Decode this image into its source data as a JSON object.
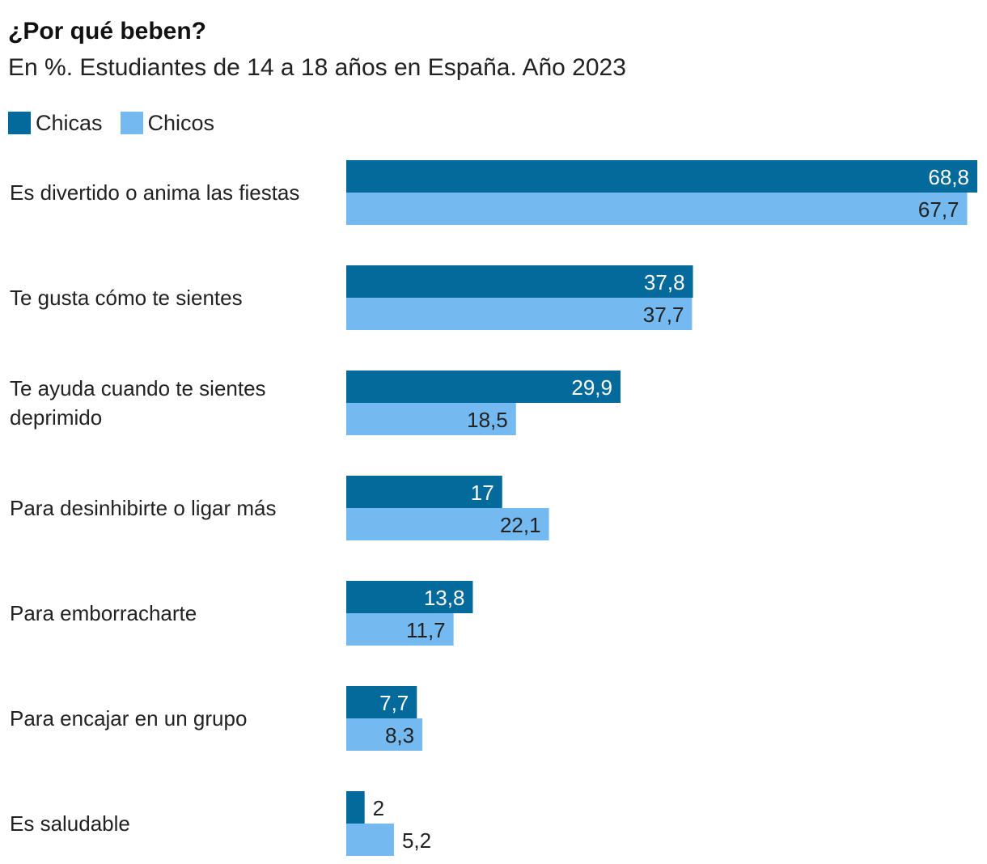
{
  "title": "¿Por qué beben?",
  "subtitle": "En %. Estudiantes de 14 a 18 años en España. Año 2023",
  "colors": {
    "chicas": "#046a9c",
    "chicos": "#74b9f0",
    "text_on_dark": "#ffffff",
    "text_on_light": "#222222"
  },
  "chart_data": {
    "type": "bar",
    "orientation": "horizontal",
    "title": "¿Por qué beben?",
    "subtitle": "En %. Estudiantes de 14 a 18 años en España. Año 2023",
    "legend_position": "top-left",
    "grid": false,
    "xlim": [
      0,
      70
    ],
    "categories": [
      [
        "Es divertido o anima las fiestas"
      ],
      [
        "Te gusta cómo te sientes"
      ],
      [
        "Te ayuda cuando te sientes",
        "deprimido"
      ],
      [
        "Para desinhibirte o ligar más"
      ],
      [
        "Para emborracharte"
      ],
      [
        "Para encajar en un grupo"
      ],
      [
        "Es saludable"
      ]
    ],
    "series": [
      {
        "name": "Chicas",
        "values": [
          68.8,
          37.8,
          29.9,
          17,
          13.8,
          7.7,
          2
        ],
        "labels": [
          "68,8",
          "37,8",
          "29,9",
          "17",
          "13,8",
          "7,7",
          "2"
        ]
      },
      {
        "name": "Chicos",
        "values": [
          67.7,
          37.7,
          18.5,
          22.1,
          11.7,
          8.3,
          5.2
        ],
        "labels": [
          "67,7",
          "37,7",
          "18,5",
          "22,1",
          "11,7",
          "8,3",
          "5,2"
        ]
      }
    ]
  }
}
